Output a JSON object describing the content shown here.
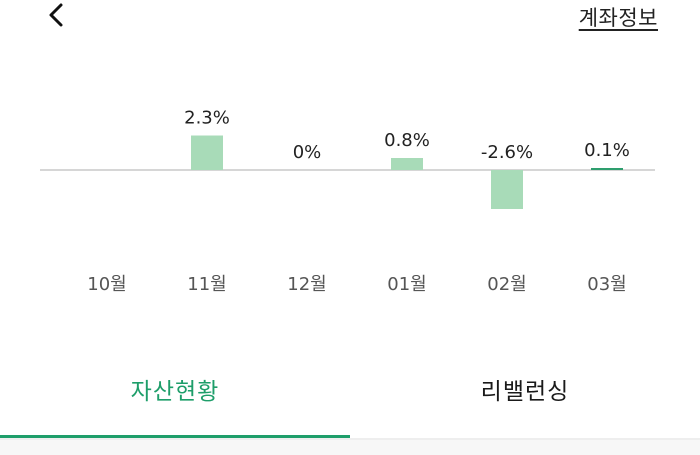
{
  "header": {
    "back_icon": "chevron-left-icon",
    "account_info_label": "계좌정보"
  },
  "chart_data": {
    "type": "bar",
    "categories": [
      "10월",
      "11월",
      "12월",
      "01월",
      "02월",
      "03월"
    ],
    "values": [
      null,
      2.3,
      0,
      0.8,
      -2.6,
      0.1
    ],
    "value_labels": [
      "",
      "2.3%",
      "0%",
      "0.8%",
      "-2.6%",
      "0.1%"
    ],
    "unit": "%",
    "bar_color": "#a8dbb8",
    "small_bar_color": "#2e9e6e",
    "baseline_color": "#c8c8c8",
    "grid": false,
    "legend": "none"
  },
  "tabs": [
    {
      "label": "자산현황",
      "active": true
    },
    {
      "label": "리밸런싱",
      "active": false
    }
  ],
  "colors": {
    "accent": "#1e9e6a",
    "text": "#222222",
    "muted": "#555555"
  }
}
